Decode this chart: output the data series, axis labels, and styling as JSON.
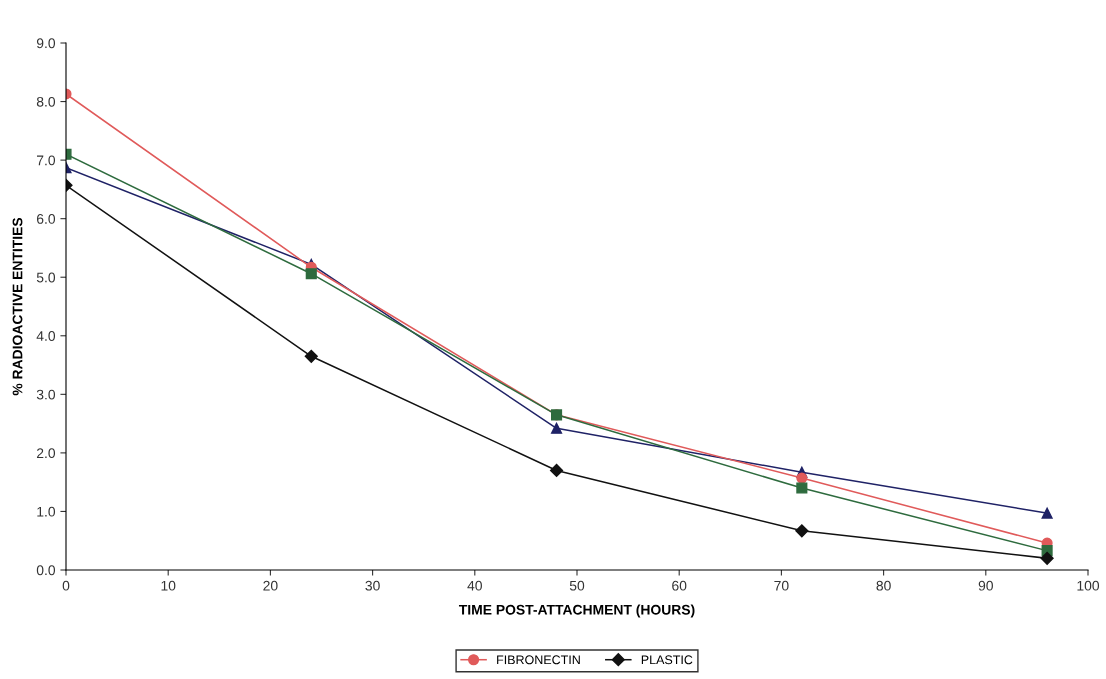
{
  "chart_data": {
    "type": "line",
    "xlabel": "TIME POST-ATTACHMENT (HOURS)",
    "ylabel": "% RADIOACTIVE ENTITIES",
    "x": [
      0,
      24,
      48,
      72,
      96
    ],
    "series": [
      {
        "color": "#1f2266",
        "marker": "triangle",
        "values": [
          6.87,
          5.22,
          2.42,
          1.67,
          0.97
        ]
      },
      {
        "name": "FIBRONECTIN",
        "color": "#e05a5a",
        "marker": "circle",
        "values": [
          8.13,
          5.17,
          2.65,
          1.57,
          0.46
        ]
      },
      {
        "color": "#2e6b3e",
        "marker": "square",
        "values": [
          7.1,
          5.06,
          2.65,
          1.4,
          0.33
        ]
      },
      {
        "name": "PLASTIC",
        "color": "#111111",
        "marker": "diamond",
        "values": [
          6.57,
          3.65,
          1.7,
          0.67,
          0.2
        ]
      }
    ],
    "xlim": [
      0,
      100
    ],
    "xticks": [
      0,
      10,
      20,
      30,
      40,
      50,
      60,
      70,
      80,
      90,
      100
    ],
    "ylim": [
      0,
      9
    ],
    "yticks": [
      {
        "value": 0,
        "label": "0.0"
      },
      {
        "value": 1,
        "label": "1.0"
      },
      {
        "value": 2,
        "label": "2.0"
      },
      {
        "value": 3,
        "label": "3.0"
      },
      {
        "value": 4,
        "label": "4.0"
      },
      {
        "value": 5,
        "label": "5.0"
      },
      {
        "value": 6,
        "label": "6.0"
      },
      {
        "value": 7,
        "label": "7.0"
      },
      {
        "value": 8,
        "label": "8.0"
      },
      {
        "value": 9,
        "label": "9.0"
      }
    ],
    "grid": false,
    "legend": "bottom",
    "line_style": "solid"
  }
}
